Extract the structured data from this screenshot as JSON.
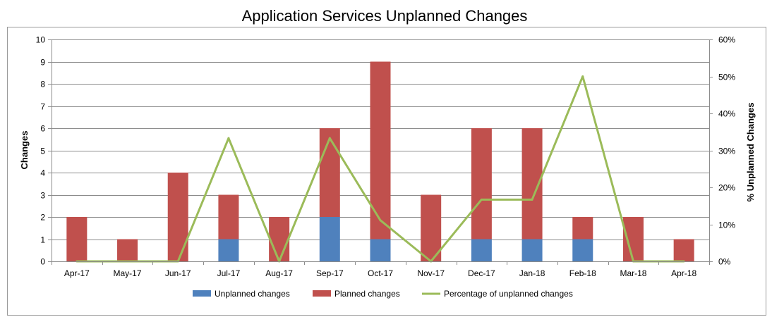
{
  "chart_data": {
    "type": "bar",
    "title": "Application Services Unplanned Changes",
    "categories": [
      "Apr-17",
      "May-17",
      "Jun-17",
      "Jul-17",
      "Aug-17",
      "Sep-17",
      "Oct-17",
      "Nov-17",
      "Dec-17",
      "Jan-18",
      "Feb-18",
      "Mar-18",
      "Apr-18"
    ],
    "series": [
      {
        "name": "Unplanned changes",
        "kind": "stacked-bar",
        "axis": "left",
        "color": "#4f81bd",
        "values": [
          0,
          0,
          0,
          1,
          0,
          2,
          1,
          0,
          1,
          1,
          1,
          0,
          0
        ]
      },
      {
        "name": "Planned changes",
        "kind": "stacked-bar",
        "axis": "left",
        "color": "#c0504d",
        "values": [
          2,
          1,
          4,
          2,
          2,
          4,
          8,
          3,
          5,
          5,
          1,
          2,
          1
        ]
      },
      {
        "name": "Percentage of unplanned changes",
        "kind": "line",
        "axis": "right",
        "color": "#9bbb59",
        "values": [
          0,
          0,
          0,
          33.3,
          0,
          33.3,
          11.1,
          0,
          16.7,
          16.7,
          50,
          0,
          0
        ]
      }
    ],
    "ylabel": "Changes",
    "y2label": "% Unplanned Changes",
    "ylim": [
      0,
      10
    ],
    "y2lim": [
      0,
      60
    ],
    "yticks": [
      "0",
      "1",
      "2",
      "3",
      "4",
      "5",
      "6",
      "7",
      "8",
      "9",
      "10"
    ],
    "y2ticks": [
      "0%",
      "10%",
      "20%",
      "30%",
      "40%",
      "50%",
      "60%"
    ],
    "grid": true,
    "legend": "bottom"
  }
}
